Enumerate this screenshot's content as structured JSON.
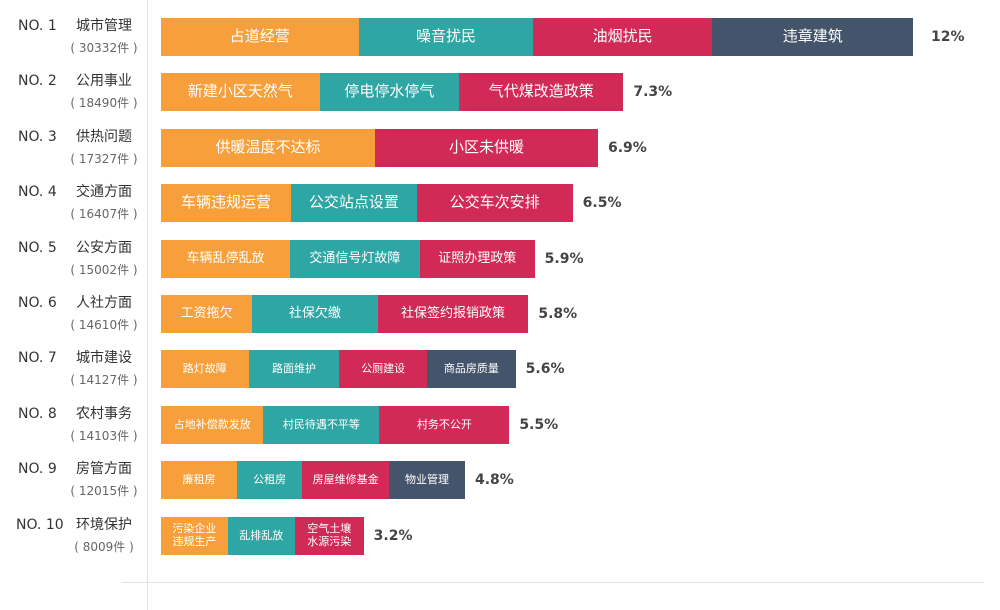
{
  "colors": {
    "orange": "#f7a03b",
    "teal": "#2ea6a4",
    "crimson": "#d22a57",
    "slate": "#44546a",
    "axis": "#e3e3e3",
    "text": "#333333",
    "muted": "#666666"
  },
  "chart_data": {
    "type": "bar",
    "orientation": "horizontal",
    "stacked": true,
    "title": "",
    "xlabel": "",
    "ylabel": "",
    "grid": false,
    "rows": [
      {
        "rank": "NO. 1",
        "category": "城市管理",
        "count": "( 30332件 )",
        "percent": "12%",
        "value": 12,
        "segments": [
          {
            "label": "占道经营",
            "share": 0.26,
            "color": "orange"
          },
          {
            "label": "噪音扰民",
            "share": 0.23,
            "color": "teal"
          },
          {
            "label": "油烟扰民",
            "share": 0.235,
            "color": "crimson"
          },
          {
            "label": "违章建筑",
            "share": 0.265,
            "color": "slate"
          }
        ]
      },
      {
        "rank": "NO. 2",
        "category": "公用事业",
        "count": "( 18490件 )",
        "percent": "7.3%",
        "value": 7.3,
        "segments": [
          {
            "label": "新建小区天然气",
            "share": 0.343,
            "color": "orange"
          },
          {
            "label": "停电停水停气",
            "share": 0.302,
            "color": "teal"
          },
          {
            "label": "气代煤改造政策",
            "share": 0.355,
            "color": "crimson"
          }
        ]
      },
      {
        "rank": "NO. 3",
        "category": "供热问题",
        "count": "( 17327件 )",
        "percent": "6.9%",
        "value": 6.9,
        "segments": [
          {
            "label": "供暖温度不达标",
            "share": 0.49,
            "color": "orange"
          },
          {
            "label": "小区未供暖",
            "share": 0.51,
            "color": "crimson"
          }
        ]
      },
      {
        "rank": "NO. 4",
        "category": "交通方面",
        "count": "( 16407件 )",
        "percent": "6.5%",
        "value": 6.5,
        "segments": [
          {
            "label": "车辆违规运营",
            "share": 0.316,
            "color": "orange"
          },
          {
            "label": "公交站点设置",
            "share": 0.305,
            "color": "teal"
          },
          {
            "label": "公交车次安排",
            "share": 0.379,
            "color": "crimson"
          }
        ]
      },
      {
        "rank": "NO. 5",
        "category": "公安方面",
        "count": "( 15002件 )",
        "percent": "5.9%",
        "value": 5.9,
        "segments": [
          {
            "label": "车辆乱停乱放",
            "share": 0.345,
            "color": "orange"
          },
          {
            "label": "交通信号灯故障",
            "share": 0.348,
            "color": "teal"
          },
          {
            "label": "证照办理政策",
            "share": 0.307,
            "color": "crimson"
          }
        ]
      },
      {
        "rank": "NO. 6",
        "category": "人社方面",
        "count": "( 14610件 )",
        "percent": "5.8%",
        "value": 5.8,
        "segments": [
          {
            "label": "工资拖欠",
            "share": 0.248,
            "color": "orange"
          },
          {
            "label": "社保欠缴",
            "share": 0.342,
            "color": "teal"
          },
          {
            "label": "社保签约报销政策",
            "share": 0.41,
            "color": "crimson"
          }
        ]
      },
      {
        "rank": "NO. 7",
        "category": "城市建设",
        "count": "( 14127件 )",
        "percent": "5.6%",
        "value": 5.6,
        "segments": [
          {
            "label": "路灯故障",
            "share": 0.247,
            "color": "orange"
          },
          {
            "label": "路面维护",
            "share": 0.256,
            "color": "teal"
          },
          {
            "label": "公厕建设",
            "share": 0.247,
            "color": "crimson"
          },
          {
            "label": "商品房质量",
            "share": 0.25,
            "color": "slate"
          }
        ]
      },
      {
        "rank": "NO. 8",
        "category": "农村事务",
        "count": "( 14103件 )",
        "percent": "5.5%",
        "value": 5.5,
        "segments": [
          {
            "label": "占地补偿款发放",
            "share": 0.294,
            "color": "orange"
          },
          {
            "label": "村民待遇不平等",
            "share": 0.333,
            "color": "teal"
          },
          {
            "label": "村务不公开",
            "share": 0.373,
            "color": "crimson"
          }
        ]
      },
      {
        "rank": "NO. 9",
        "category": "房管方面",
        "count": "( 12015件 )",
        "percent": "4.8%",
        "value": 4.8,
        "segments": [
          {
            "label": "廉租房",
            "share": 0.25,
            "color": "orange"
          },
          {
            "label": "公租房",
            "share": 0.215,
            "color": "teal"
          },
          {
            "label": "房屋维修基金",
            "share": 0.285,
            "color": "crimson"
          },
          {
            "label": "物业管理",
            "share": 0.25,
            "color": "slate"
          }
        ]
      },
      {
        "rank": "NO. 10",
        "category": "环境保护",
        "count": "( 8009件 )",
        "percent": "3.2%",
        "value": 3.2,
        "segments": [
          {
            "label": "污染企业\n违规生产",
            "share": 0.33,
            "color": "orange"
          },
          {
            "label": "乱排乱放",
            "share": 0.33,
            "color": "teal"
          },
          {
            "label": "空气土壤\n水源污染",
            "share": 0.34,
            "color": "crimson"
          }
        ]
      }
    ]
  }
}
